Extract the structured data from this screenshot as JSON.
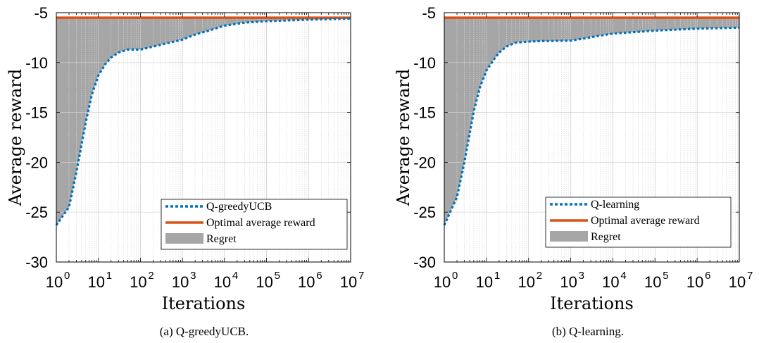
{
  "chart_data": [
    {
      "type": "line",
      "caption": "(a) Q-greedyUCB.",
      "xlabel": "Iterations",
      "ylabel": "Average reward",
      "xscale": "log",
      "xlim": [
        1,
        10000000
      ],
      "ylim": [
        -30,
        -5
      ],
      "xticks": [
        {
          "base": "10",
          "exp": "0"
        },
        {
          "base": "10",
          "exp": "1"
        },
        {
          "base": "10",
          "exp": "2"
        },
        {
          "base": "10",
          "exp": "3"
        },
        {
          "base": "10",
          "exp": "4"
        },
        {
          "base": "10",
          "exp": "5"
        },
        {
          "base": "10",
          "exp": "6"
        },
        {
          "base": "10",
          "exp": "7"
        }
      ],
      "yticks": [
        "-5",
        "-10",
        "-15",
        "-20",
        "-25",
        "-30"
      ],
      "grid": true,
      "legend_position": "bottom-right",
      "optimal": -5.5,
      "series": [
        {
          "name": "Q-greedyUCB",
          "style": "dotted",
          "color": "#0072BD",
          "x": [
            1,
            2,
            3,
            5,
            7,
            10,
            15,
            20,
            30,
            50,
            70,
            100,
            200,
            500,
            1000,
            2000,
            5000,
            10000,
            30000,
            100000,
            1000000,
            10000000
          ],
          "y": [
            -26.3,
            -24.5,
            -21.0,
            -16.0,
            -13.2,
            -11.3,
            -10.1,
            -9.5,
            -9.0,
            -8.7,
            -8.7,
            -8.7,
            -8.4,
            -8.0,
            -7.7,
            -7.2,
            -6.7,
            -6.3,
            -6.0,
            -5.85,
            -5.7,
            -5.6
          ]
        },
        {
          "name": "Optimal average reward",
          "style": "solid",
          "color": "#D95319"
        },
        {
          "name": "Regret",
          "style": "area",
          "color": "#A6A6A6"
        }
      ]
    },
    {
      "type": "line",
      "caption": "(b) Q-learning.",
      "xlabel": "Iterations",
      "ylabel": "Average reward",
      "xscale": "log",
      "xlim": [
        1,
        10000000
      ],
      "ylim": [
        -30,
        -5
      ],
      "xticks": [
        {
          "base": "10",
          "exp": "0"
        },
        {
          "base": "10",
          "exp": "1"
        },
        {
          "base": "10",
          "exp": "2"
        },
        {
          "base": "10",
          "exp": "3"
        },
        {
          "base": "10",
          "exp": "4"
        },
        {
          "base": "10",
          "exp": "5"
        },
        {
          "base": "10",
          "exp": "6"
        },
        {
          "base": "10",
          "exp": "7"
        }
      ],
      "yticks": [
        "-5",
        "-10",
        "-15",
        "-20",
        "-25",
        "-30"
      ],
      "grid": true,
      "legend_position": "bottom-right",
      "optimal": -5.5,
      "series": [
        {
          "name": "Q-learning",
          "style": "dotted",
          "color": "#0072BD",
          "x": [
            1,
            2,
            3,
            5,
            7,
            10,
            15,
            20,
            30,
            50,
            100,
            200,
            1000,
            2000,
            5000,
            10000,
            100000,
            1000000,
            10000000
          ],
          "y": [
            -26.3,
            -23.5,
            -20.0,
            -14.9,
            -12.5,
            -10.8,
            -9.7,
            -9.0,
            -8.4,
            -8.0,
            -7.9,
            -7.85,
            -7.8,
            -7.6,
            -7.3,
            -7.1,
            -6.8,
            -6.6,
            -6.5
          ]
        },
        {
          "name": "Optimal average reward",
          "style": "solid",
          "color": "#D95319"
        },
        {
          "name": "Regret",
          "style": "area",
          "color": "#A6A6A6"
        }
      ]
    }
  ]
}
